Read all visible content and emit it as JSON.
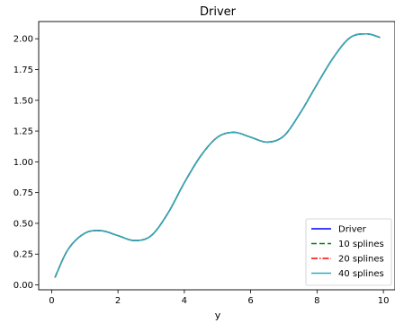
{
  "chart_data": {
    "type": "line",
    "title": "Driver",
    "xlabel": "y",
    "ylabel": "",
    "xlim": [
      -0.39,
      10.35
    ],
    "ylim": [
      -0.04,
      2.14
    ],
    "xticks": [
      0,
      2,
      4,
      6,
      8,
      10
    ],
    "yticks": [
      0.0,
      0.25,
      0.5,
      0.75,
      1.0,
      1.25,
      1.5,
      1.75,
      2.0
    ],
    "ytick_labels": [
      "0.00",
      "0.25",
      "0.50",
      "0.75",
      "1.00",
      "1.25",
      "1.50",
      "1.75",
      "2.00"
    ],
    "xtick_labels": [
      "0",
      "2",
      "4",
      "6",
      "8",
      "10"
    ],
    "grid": false,
    "legend_position": "bottom-right",
    "x": [
      0.1,
      0.5,
      1.0,
      1.5,
      2.0,
      2.5,
      3.0,
      3.5,
      4.0,
      4.5,
      5.0,
      5.5,
      6.0,
      6.5,
      7.0,
      7.5,
      8.0,
      8.5,
      9.0,
      9.5,
      9.9
    ],
    "series": [
      {
        "name": "Driver",
        "color": "#0000ff",
        "dash": "",
        "y": [
          0.06,
          0.29,
          0.42,
          0.44,
          0.4,
          0.36,
          0.4,
          0.58,
          0.83,
          1.05,
          1.2,
          1.24,
          1.2,
          1.16,
          1.21,
          1.4,
          1.63,
          1.85,
          2.01,
          2.04,
          2.01
        ]
      },
      {
        "name": "10 splines",
        "color": "#008000",
        "dash": "6,3",
        "y": [
          0.06,
          0.29,
          0.42,
          0.44,
          0.4,
          0.36,
          0.4,
          0.58,
          0.83,
          1.05,
          1.2,
          1.24,
          1.2,
          1.16,
          1.21,
          1.4,
          1.63,
          1.85,
          2.01,
          2.04,
          2.01
        ]
      },
      {
        "name": "20 splines",
        "color": "#ff0000",
        "dash": "7,2,1.5,2",
        "y": [
          0.06,
          0.29,
          0.42,
          0.44,
          0.4,
          0.36,
          0.4,
          0.58,
          0.83,
          1.05,
          1.2,
          1.24,
          1.2,
          1.16,
          1.21,
          1.4,
          1.63,
          1.85,
          2.01,
          2.04,
          2.01
        ]
      },
      {
        "name": "40 splines",
        "color": "#2ab0b8",
        "dash": "",
        "y": [
          0.06,
          0.29,
          0.42,
          0.44,
          0.4,
          0.36,
          0.4,
          0.58,
          0.83,
          1.05,
          1.2,
          1.24,
          1.2,
          1.16,
          1.21,
          1.4,
          1.63,
          1.85,
          2.01,
          2.04,
          2.01
        ]
      }
    ]
  }
}
